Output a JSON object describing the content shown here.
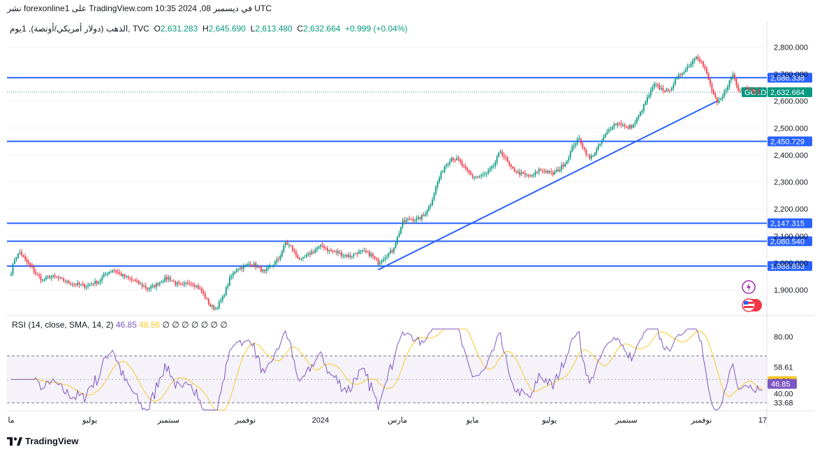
{
  "header": {
    "publish_line": "نشر forexonline1 على TradingView.com 10:35 2024 ,08 في ديسمبر UTC"
  },
  "ohlc": {
    "symbol_line": "الذهب (دولار أمريكي/أونصة), 1يوم, TVC",
    "open_label": "O",
    "open": "2,631.283",
    "high_label": "H",
    "high": "2,645.690",
    "low_label": "L",
    "low": "2,613.480",
    "close_label": "C",
    "close": "2,632.664",
    "change": "+0.999 (+0.04%)"
  },
  "rsi_header": {
    "label": "RSI (14, close, SMA, 14, 2)",
    "rsi_value": "46.85",
    "sma_value": "48.86",
    "empty_marks": "∅ ∅ ∅ ∅ ∅ ∅ ∅"
  },
  "footer": {
    "brand": "TradingView"
  },
  "chart_data": {
    "type": "candlestick",
    "symbol": "GOLD",
    "last_price": 2632.664,
    "price_axis_ticks": [
      {
        "v": 2800,
        "label": "2,800.000"
      },
      {
        "v": 2700,
        "label": "2,700.000"
      },
      {
        "v": 2600,
        "label": "2,600.000"
      },
      {
        "v": 2500,
        "label": "2,500.000"
      },
      {
        "v": 2400,
        "label": "2,400.000"
      },
      {
        "v": 2300,
        "label": "2,300.000"
      },
      {
        "v": 2200,
        "label": "2,200.000"
      },
      {
        "v": 2100,
        "label": "2,100.000"
      },
      {
        "v": 2000,
        "label": "2,000.000"
      },
      {
        "v": 1900,
        "label": "1,900.000"
      }
    ],
    "ylim": [
      1815,
      2845
    ],
    "horizontal_levels": [
      {
        "v": 2686.338,
        "label": "2,686.338"
      },
      {
        "v": 2450.729,
        "label": "2,450.729"
      },
      {
        "v": 2147.315,
        "label": "2,147.315"
      },
      {
        "v": 2080.54,
        "label": "2,080.540"
      },
      {
        "v": 1988.853,
        "label": "1,988.853"
      }
    ],
    "trendline": {
      "from": {
        "i": 210,
        "price": 1975
      },
      "to": {
        "i": 404,
        "price": 2600
      }
    },
    "x_ticks": [
      {
        "i": 0,
        "label": "ما"
      },
      {
        "i": 45,
        "label": "يوليو"
      },
      {
        "i": 90,
        "label": "سبتمبر"
      },
      {
        "i": 134,
        "label": "نوفمبر"
      },
      {
        "i": 177,
        "label": "2024"
      },
      {
        "i": 221,
        "label": "مارس"
      },
      {
        "i": 264,
        "label": "مايو"
      },
      {
        "i": 308,
        "label": "يوليو"
      },
      {
        "i": 352,
        "label": "سبتمبر"
      },
      {
        "i": 395,
        "label": "نوفمبر"
      },
      {
        "i": 430,
        "label": "17"
      }
    ],
    "price_keypoints": [
      [
        0,
        1965
      ],
      [
        2,
        2015
      ],
      [
        5,
        2040
      ],
      [
        8,
        2010
      ],
      [
        12,
        1980
      ],
      [
        15,
        1955
      ],
      [
        18,
        1935
      ],
      [
        22,
        1950
      ],
      [
        26,
        1945
      ],
      [
        30,
        1935
      ],
      [
        34,
        1925
      ],
      [
        38,
        1920
      ],
      [
        42,
        1915
      ],
      [
        46,
        1925
      ],
      [
        50,
        1930
      ],
      [
        54,
        1960
      ],
      [
        58,
        1975
      ],
      [
        62,
        1960
      ],
      [
        66,
        1945
      ],
      [
        70,
        1935
      ],
      [
        74,
        1920
      ],
      [
        78,
        1905
      ],
      [
        82,
        1915
      ],
      [
        86,
        1935
      ],
      [
        90,
        1945
      ],
      [
        94,
        1925
      ],
      [
        98,
        1915
      ],
      [
        102,
        1930
      ],
      [
        106,
        1915
      ],
      [
        110,
        1885
      ],
      [
        114,
        1840
      ],
      [
        117,
        1830
      ],
      [
        121,
        1870
      ],
      [
        125,
        1940
      ],
      [
        129,
        1980
      ],
      [
        133,
        1985
      ],
      [
        137,
        2000
      ],
      [
        141,
        1985
      ],
      [
        145,
        1965
      ],
      [
        149,
        1990
      ],
      [
        153,
        2015
      ],
      [
        157,
        2075
      ],
      [
        160,
        2060
      ],
      [
        163,
        2030
      ],
      [
        166,
        2010
      ],
      [
        170,
        2030
      ],
      [
        174,
        2050
      ],
      [
        178,
        2065
      ],
      [
        182,
        2045
      ],
      [
        186,
        2040
      ],
      [
        190,
        2030
      ],
      [
        194,
        2025
      ],
      [
        198,
        2040
      ],
      [
        202,
        2040
      ],
      [
        206,
        2030
      ],
      [
        210,
        2000
      ],
      [
        214,
        2025
      ],
      [
        218,
        2045
      ],
      [
        221,
        2095
      ],
      [
        224,
        2150
      ],
      [
        228,
        2165
      ],
      [
        232,
        2160
      ],
      [
        236,
        2175
      ],
      [
        240,
        2220
      ],
      [
        244,
        2300
      ],
      [
        248,
        2360
      ],
      [
        252,
        2390
      ],
      [
        256,
        2380
      ],
      [
        260,
        2345
      ],
      [
        264,
        2320
      ],
      [
        268,
        2320
      ],
      [
        272,
        2330
      ],
      [
        276,
        2360
      ],
      [
        280,
        2415
      ],
      [
        283,
        2385
      ],
      [
        286,
        2350
      ],
      [
        290,
        2335
      ],
      [
        294,
        2325
      ],
      [
        298,
        2320
      ],
      [
        302,
        2345
      ],
      [
        306,
        2340
      ],
      [
        310,
        2330
      ],
      [
        314,
        2350
      ],
      [
        318,
        2380
      ],
      [
        322,
        2440
      ],
      [
        325,
        2460
      ],
      [
        328,
        2420
      ],
      [
        331,
        2385
      ],
      [
        334,
        2410
      ],
      [
        337,
        2440
      ],
      [
        340,
        2475
      ],
      [
        344,
        2510
      ],
      [
        348,
        2520
      ],
      [
        352,
        2500
      ],
      [
        356,
        2510
      ],
      [
        360,
        2555
      ],
      [
        364,
        2610
      ],
      [
        368,
        2660
      ],
      [
        372,
        2645
      ],
      [
        376,
        2635
      ],
      [
        380,
        2675
      ],
      [
        383,
        2700
      ],
      [
        386,
        2720
      ],
      [
        389,
        2740
      ],
      [
        392,
        2770
      ],
      [
        395,
        2745
      ],
      [
        398,
        2700
      ],
      [
        401,
        2640
      ],
      [
        404,
        2590
      ],
      [
        407,
        2615
      ],
      [
        410,
        2660
      ],
      [
        413,
        2700
      ],
      [
        416,
        2640
      ],
      [
        419,
        2650
      ],
      [
        422,
        2645
      ],
      [
        425,
        2640
      ],
      [
        428,
        2632.664
      ]
    ],
    "rsi": {
      "ticks": [
        {
          "v": 80,
          "label": "80.00"
        },
        {
          "v": 40,
          "label": "40.00"
        }
      ],
      "band_upper": {
        "v": 66.5
      },
      "band_lower": {
        "v": 33.5
      },
      "labels": [
        {
          "v": 58.61,
          "label": "58.61"
        },
        {
          "v": 48.86,
          "label": "48.86",
          "kind": "sma"
        },
        {
          "v": 46.85,
          "label": "46.85",
          "kind": "rsi"
        },
        {
          "v": 33.68,
          "label": "33.68"
        }
      ],
      "ylim": [
        28,
        86
      ]
    }
  },
  "colors": {
    "up": "#089981",
    "down": "#f23645",
    "level_line": "#2962ff",
    "trendline": "#2962ff",
    "rsi_line": "#7e57c2",
    "rsi_sma": "#f7c92b",
    "rsi_band_fill": "#7e57c2",
    "grid": "#f0f3fa",
    "last_price_box": "#089981"
  }
}
